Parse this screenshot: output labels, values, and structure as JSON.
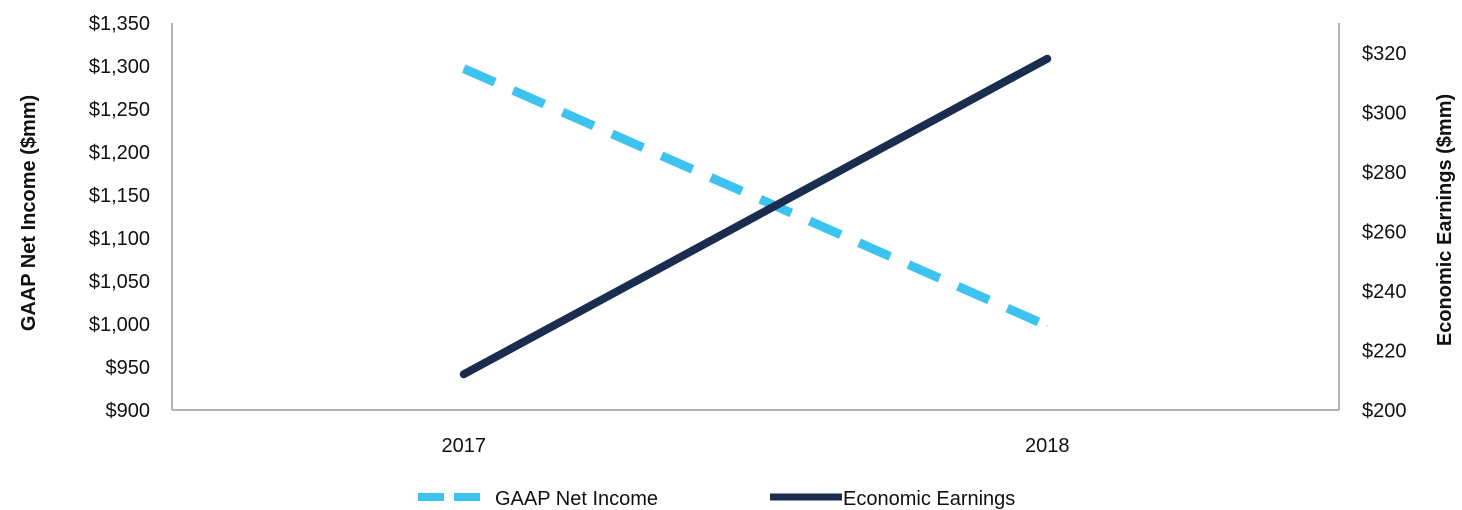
{
  "chart_data": {
    "type": "line",
    "categories": [
      "2017",
      "2018"
    ],
    "series": [
      {
        "name": "GAAP Net Income",
        "axis": "left",
        "values": [
          1297,
          998
        ],
        "color": "#3cc3ef",
        "dashed": true
      },
      {
        "name": "Economic Earnings",
        "axis": "right",
        "values": [
          212,
          318
        ],
        "color": "#1a2d4e",
        "dashed": false
      }
    ],
    "ylabel_left": "GAAP Net Income ($mm)",
    "ylabel_right": "Economic Earnings ($mm)",
    "ylim_left": [
      900,
      1350
    ],
    "ylim_right": [
      200,
      330
    ],
    "yticks_left": [
      "$900",
      "$950",
      "$1,000",
      "$1,050",
      "$1,100",
      "$1,150",
      "$1,200",
      "$1,250",
      "$1,300",
      "$1,350"
    ],
    "yticks_right": [
      "$200",
      "$220",
      "$240",
      "$260",
      "$280",
      "$300",
      "$320"
    ],
    "grid": false,
    "legend_position": "bottom"
  }
}
